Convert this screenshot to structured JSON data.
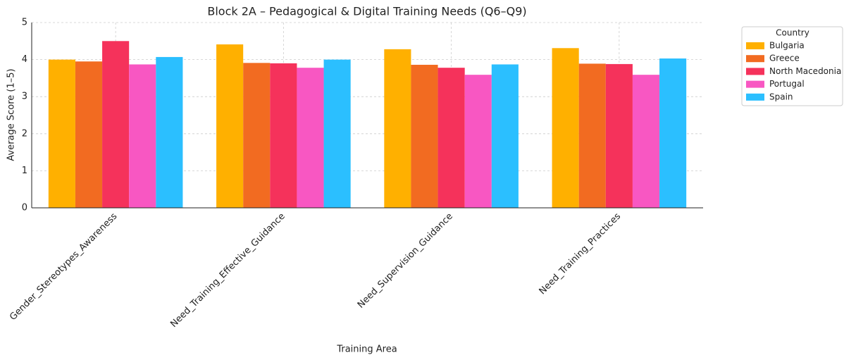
{
  "chart_data": {
    "type": "bar",
    "title": "Block 2A – Pedagogical & Digital Training Needs (Q6–Q9)",
    "xlabel": "Training Area",
    "ylabel": "Average Score (1–5)",
    "categories": [
      "Gender_Stereotypes_Awareness",
      "Need_Training_Effective_Guidance",
      "Need_Supervision_Guidance",
      "Need_Training_Practices"
    ],
    "series": [
      {
        "name": "Bulgaria",
        "color": "#ffb000",
        "values": [
          4.0,
          4.41,
          4.28,
          4.31
        ]
      },
      {
        "name": "Greece",
        "color": "#f26b21",
        "values": [
          3.95,
          3.91,
          3.86,
          3.89
        ]
      },
      {
        "name": "North Macedonia",
        "color": "#f5325b",
        "values": [
          4.5,
          3.9,
          3.78,
          3.88
        ]
      },
      {
        "name": "Portugal",
        "color": "#f857c2",
        "values": [
          3.87,
          3.78,
          3.59,
          3.59
        ]
      },
      {
        "name": "Spain",
        "color": "#2bbfff",
        "values": [
          4.07,
          4.0,
          3.87,
          4.03
        ]
      }
    ],
    "legend_title": "Country",
    "legend": "upper right outside",
    "ylim": [
      0,
      5
    ],
    "yticks": [
      0,
      1,
      2,
      3,
      4,
      5
    ],
    "grid": true
  }
}
